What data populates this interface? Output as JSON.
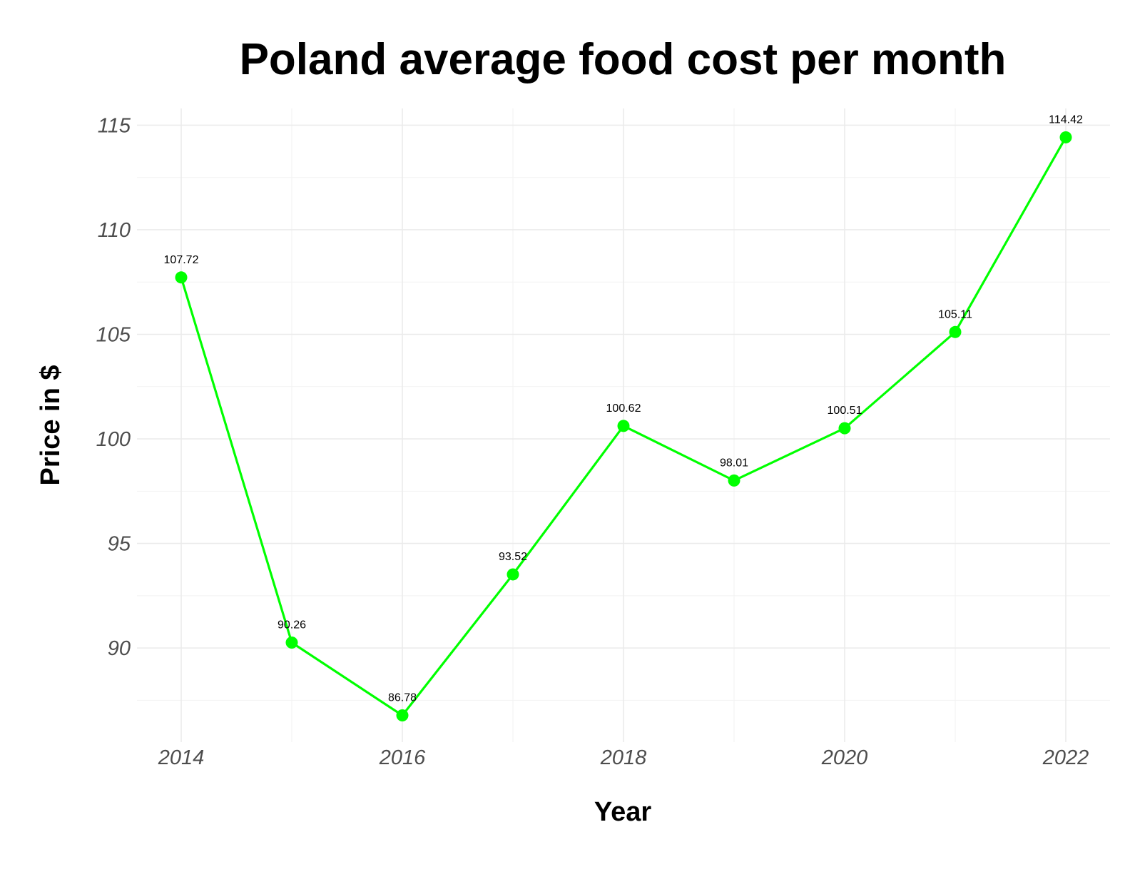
{
  "chart_data": {
    "type": "line",
    "title": "Poland average food cost per month",
    "xlabel": "Year",
    "ylabel": "Price in $",
    "x": [
      2014,
      2015,
      2016,
      2017,
      2018,
      2019,
      2020,
      2021,
      2022
    ],
    "values": [
      107.72,
      90.26,
      86.78,
      93.52,
      100.62,
      98.01,
      100.51,
      105.11,
      114.42
    ],
    "data_labels": [
      "107.72",
      "90.26",
      "86.78",
      "93.52",
      "100.62",
      "98.01",
      "100.51",
      "105.11",
      "114.42"
    ],
    "x_ticks": [
      2014,
      2016,
      2018,
      2020,
      2022
    ],
    "y_ticks": [
      90,
      95,
      100,
      105,
      110,
      115
    ],
    "xlim": [
      2013.6,
      2022.4
    ],
    "ylim": [
      85.5,
      115.8
    ],
    "grid": true,
    "legend": "none",
    "colors": {
      "line": "#00ff00",
      "point": "#00ff00"
    }
  }
}
